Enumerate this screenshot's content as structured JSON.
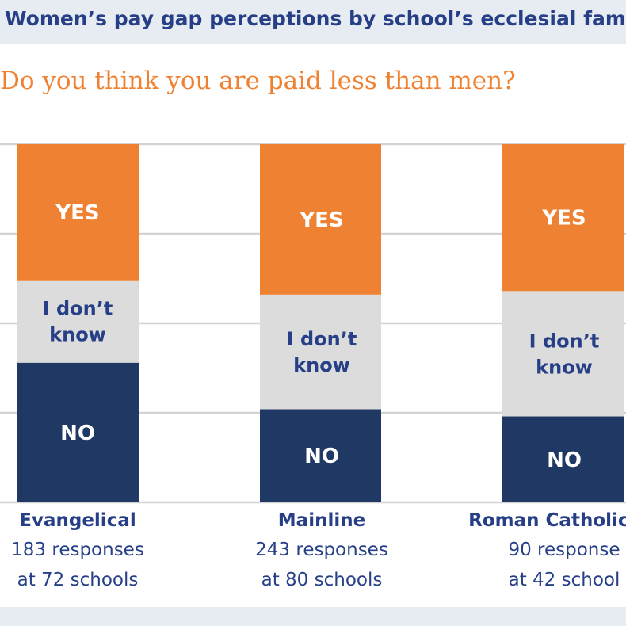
{
  "header": {
    "title": "Women’s pay gap perceptions by school’s ecclesial fam"
  },
  "colors": {
    "yes": "#ef8232",
    "dont_know": "#dcdcdc",
    "no": "#1f3864",
    "label_dark": "#263f86",
    "gridline": "#d3d3d3",
    "background_band": "#e6ecf2"
  },
  "chart_data": {
    "type": "bar",
    "stacked": true,
    "title": "Do you think you are paid less than men?",
    "categories": [
      "Evangelical",
      "Mainline",
      "Roman Catholic/Or"
    ],
    "category_subtitles": [
      [
        "183 responses",
        "at 72 schools"
      ],
      [
        "243 responses",
        "at 80 schools"
      ],
      [
        "90 response",
        "at 42 school"
      ]
    ],
    "series": [
      {
        "name": "NO",
        "label": "NO",
        "values": [
          39,
          26,
          24
        ]
      },
      {
        "name": "I don’t know",
        "label_lines": [
          "I don’t",
          "know"
        ],
        "values": [
          23,
          32,
          35
        ]
      },
      {
        "name": "YES",
        "label": "YES",
        "values": [
          38,
          42,
          41
        ]
      }
    ],
    "ylim": [
      0,
      100
    ],
    "gridlines": [
      0,
      25,
      50,
      75,
      100
    ],
    "grid": true,
    "legend": "none (labels inside bars)",
    "xlabel": "",
    "ylabel": ""
  }
}
